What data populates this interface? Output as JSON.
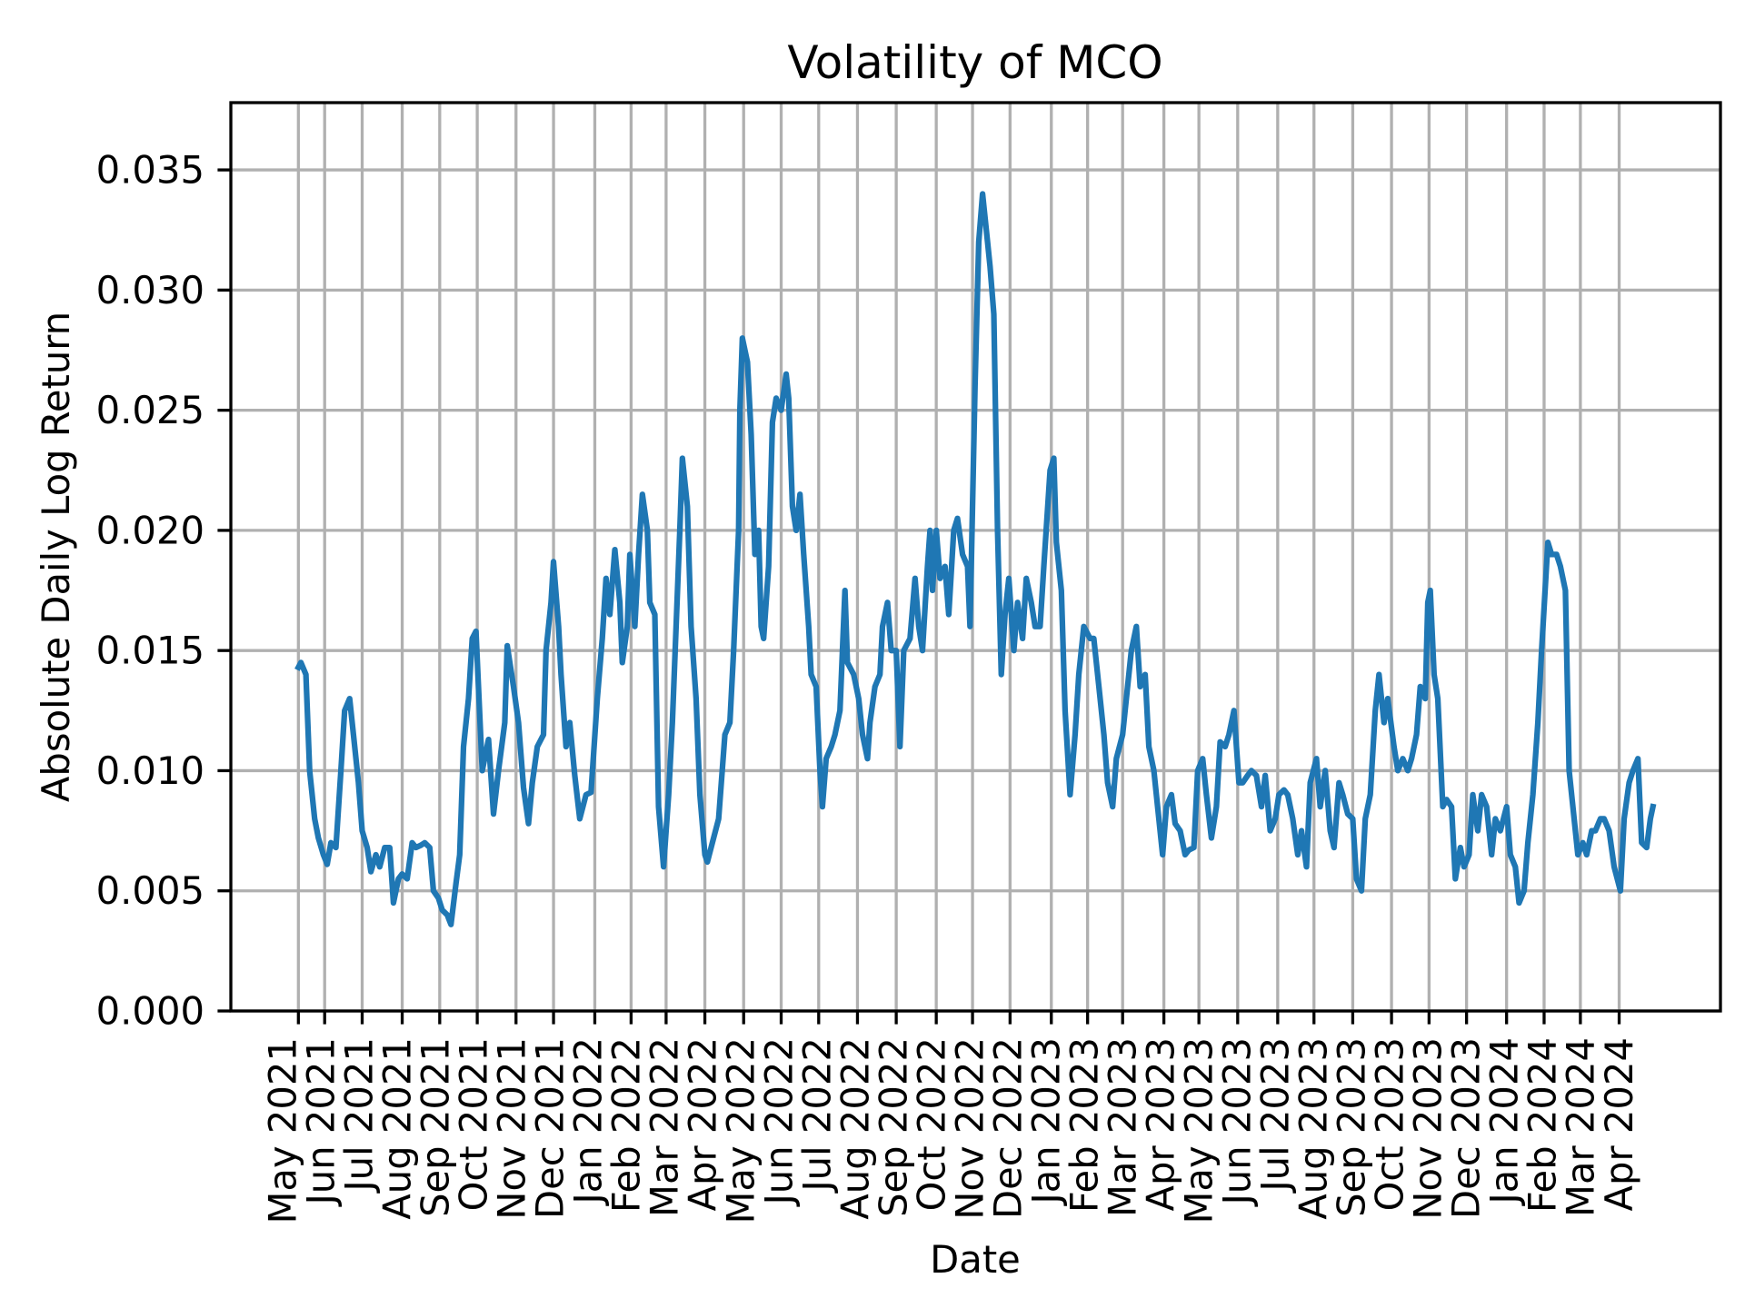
{
  "chart_data": {
    "type": "line",
    "title": "Volatility of MCO",
    "xlabel": "Date",
    "ylabel": "Absolute Daily Log Return",
    "xlim": [
      "2021-03-18",
      "2024-06-21"
    ],
    "ylim": [
      0,
      0.0378
    ],
    "grid": true,
    "line_color": "#1f77b4",
    "yticks": [
      0.0,
      0.005,
      0.01,
      0.015,
      0.02,
      0.025,
      0.03,
      0.035
    ],
    "ytick_labels": [
      "0.000",
      "0.005",
      "0.010",
      "0.015",
      "0.020",
      "0.025",
      "0.030",
      "0.035"
    ],
    "xticks": [
      "2021-05-11",
      "2021-06-01",
      "2021-07-01",
      "2021-08-02",
      "2021-09-01",
      "2021-10-01",
      "2021-11-01",
      "2021-12-01",
      "2022-01-03",
      "2022-02-01",
      "2022-03-01",
      "2022-04-01",
      "2022-05-02",
      "2022-06-01",
      "2022-07-01",
      "2022-08-01",
      "2022-09-01",
      "2022-10-03",
      "2022-11-01",
      "2022-12-01",
      "2023-01-03",
      "2023-02-01",
      "2023-03-01",
      "2023-04-03",
      "2023-05-01",
      "2023-06-01",
      "2023-07-03",
      "2023-08-01",
      "2023-09-01",
      "2023-10-02",
      "2023-11-01",
      "2023-12-01",
      "2024-01-02",
      "2024-02-01",
      "2024-03-01",
      "2024-04-01"
    ],
    "xtick_labels": [
      "May 2021",
      "Jun 2021",
      "Jul 2021",
      "Aug 2021",
      "Sep 2021",
      "Oct 2021",
      "Nov 2021",
      "Dec 2021",
      "Jan 2022",
      "Feb 2022",
      "Mar 2022",
      "Apr 2022",
      "May 2022",
      "Jun 2022",
      "Jul 2022",
      "Aug 2022",
      "Sep 2022",
      "Oct 2022",
      "Nov 2022",
      "Dec 2022",
      "Jan 2023",
      "Feb 2023",
      "Mar 2023",
      "Apr 2023",
      "May 2023",
      "Jun 2023",
      "Jul 2023",
      "Aug 2023",
      "Sep 2023",
      "Oct 2023",
      "Nov 2023",
      "Dec 2023",
      "Jan 2024",
      "Feb 2024",
      "Mar 2024",
      "Apr 2024"
    ],
    "x": [
      "2021-05-11",
      "2021-05-13",
      "2021-05-17",
      "2021-05-20",
      "2021-05-24",
      "2021-05-27",
      "2021-05-31",
      "2021-06-03",
      "2021-06-06",
      "2021-06-10",
      "2021-06-14",
      "2021-06-17",
      "2021-06-21",
      "2021-06-24",
      "2021-06-28",
      "2021-07-01",
      "2021-07-05",
      "2021-07-08",
      "2021-07-12",
      "2021-07-15",
      "2021-07-19",
      "2021-07-23",
      "2021-07-26",
      "2021-07-30",
      "2021-08-02",
      "2021-08-06",
      "2021-08-10",
      "2021-08-13",
      "2021-08-17",
      "2021-08-20",
      "2021-08-24",
      "2021-08-27",
      "2021-08-31",
      "2021-09-03",
      "2021-09-07",
      "2021-09-10",
      "2021-09-14",
      "2021-09-17",
      "2021-09-20",
      "2021-09-24",
      "2021-09-27",
      "2021-09-30",
      "2021-10-05",
      "2021-10-10",
      "2021-10-14",
      "2021-10-18",
      "2021-10-23",
      "2021-10-25",
      "2021-10-30",
      "2021-11-03",
      "2021-11-07",
      "2021-11-11",
      "2021-11-14",
      "2021-11-18",
      "2021-11-23",
      "2021-11-25",
      "2021-11-29",
      "2021-12-01",
      "2021-12-05",
      "2021-12-07",
      "2021-12-11",
      "2021-12-14",
      "2021-12-18",
      "2021-12-22",
      "2021-12-27",
      "2021-12-31",
      "2022-01-05",
      "2022-01-09",
      "2022-01-12",
      "2022-01-15",
      "2022-01-19",
      "2022-01-23",
      "2022-01-25",
      "2022-01-29",
      "2022-01-31",
      "2022-02-04",
      "2022-02-07",
      "2022-02-10",
      "2022-02-14",
      "2022-02-16",
      "2022-02-20",
      "2022-02-23",
      "2022-02-27",
      "2022-03-03",
      "2022-03-06",
      "2022-03-09",
      "2022-03-12",
      "2022-03-14",
      "2022-03-18",
      "2022-03-21",
      "2022-03-25",
      "2022-03-28",
      "2022-04-01",
      "2022-04-03",
      "2022-04-07",
      "2022-04-12",
      "2022-04-17",
      "2022-04-21",
      "2022-04-24",
      "2022-04-28",
      "2022-04-29",
      "2022-05-01",
      "2022-05-05",
      "2022-05-08",
      "2022-05-11",
      "2022-05-14",
      "2022-05-16",
      "2022-05-18",
      "2022-05-22",
      "2022-05-25",
      "2022-05-28",
      "2022-06-01",
      "2022-06-05",
      "2022-06-07",
      "2022-06-10",
      "2022-06-13",
      "2022-06-16",
      "2022-06-19",
      "2022-06-23",
      "2022-06-25",
      "2022-06-29",
      "2022-07-02",
      "2022-07-04",
      "2022-07-07",
      "2022-07-11",
      "2022-07-14",
      "2022-07-18",
      "2022-07-22",
      "2022-07-24",
      "2022-07-29",
      "2022-08-02",
      "2022-08-05",
      "2022-08-09",
      "2022-08-11",
      "2022-08-15",
      "2022-08-19",
      "2022-08-21",
      "2022-08-25",
      "2022-08-28",
      "2022-09-01",
      "2022-09-04",
      "2022-09-07",
      "2022-09-12",
      "2022-09-16",
      "2022-09-19",
      "2022-09-22",
      "2022-09-26",
      "2022-09-28",
      "2022-09-30",
      "2022-10-03",
      "2022-10-06",
      "2022-10-10",
      "2022-10-13",
      "2022-10-17",
      "2022-10-20",
      "2022-10-24",
      "2022-10-28",
      "2022-10-30",
      "2022-11-03",
      "2022-11-06",
      "2022-11-09",
      "2022-11-13",
      "2022-11-15",
      "2022-11-18",
      "2022-11-21",
      "2022-11-24",
      "2022-11-27",
      "2022-11-30",
      "2022-12-04",
      "2022-12-07",
      "2022-12-11",
      "2022-12-14",
      "2022-12-18",
      "2022-12-21",
      "2022-12-25",
      "2022-12-28",
      "2023-01-02",
      "2023-01-05",
      "2023-01-07",
      "2023-01-11",
      "2023-01-14",
      "2023-01-18",
      "2023-01-22",
      "2023-01-25",
      "2023-01-29",
      "2023-02-03",
      "2023-02-06",
      "2023-02-10",
      "2023-02-14",
      "2023-02-17",
      "2023-02-21",
      "2023-02-24",
      "2023-03-01",
      "2023-03-04",
      "2023-03-08",
      "2023-03-12",
      "2023-03-15",
      "2023-03-19",
      "2023-03-22",
      "2023-03-26",
      "2023-03-29",
      "2023-04-02",
      "2023-04-05",
      "2023-04-09",
      "2023-04-12",
      "2023-04-16",
      "2023-04-20",
      "2023-04-23",
      "2023-04-27",
      "2023-04-30",
      "2023-05-04",
      "2023-05-07",
      "2023-05-11",
      "2023-05-15",
      "2023-05-18",
      "2023-05-22",
      "2023-05-25",
      "2023-05-29",
      "2023-06-02",
      "2023-06-05",
      "2023-06-09",
      "2023-06-12",
      "2023-06-16",
      "2023-06-20",
      "2023-06-23",
      "2023-06-27",
      "2023-07-01",
      "2023-07-04",
      "2023-07-08",
      "2023-07-11",
      "2023-07-15",
      "2023-07-19",
      "2023-07-22",
      "2023-07-26",
      "2023-07-29",
      "2023-08-03",
      "2023-08-06",
      "2023-08-10",
      "2023-08-14",
      "2023-08-17",
      "2023-08-21",
      "2023-08-24",
      "2023-08-28",
      "2023-09-01",
      "2023-09-04",
      "2023-09-08",
      "2023-09-11",
      "2023-09-15",
      "2023-09-19",
      "2023-09-22",
      "2023-09-26",
      "2023-09-29",
      "2023-10-04",
      "2023-10-07",
      "2023-10-11",
      "2023-10-15",
      "2023-10-18",
      "2023-10-22",
      "2023-10-25",
      "2023-10-29",
      "2023-10-31",
      "2023-11-02",
      "2023-11-05",
      "2023-11-08",
      "2023-11-12",
      "2023-11-15",
      "2023-11-19",
      "2023-11-22",
      "2023-11-26",
      "2023-11-29",
      "2023-12-03",
      "2023-12-06",
      "2023-12-10",
      "2023-12-13",
      "2023-12-17",
      "2023-12-21",
      "2023-12-24",
      "2023-12-28",
      "2024-01-02",
      "2024-01-05",
      "2024-01-09",
      "2024-01-12",
      "2024-01-16",
      "2024-01-19",
      "2024-01-23",
      "2024-01-27",
      "2024-01-30",
      "2024-02-04",
      "2024-02-07",
      "2024-02-11",
      "2024-02-14",
      "2024-02-18",
      "2024-02-21",
      "2024-02-25",
      "2024-02-28",
      "2024-03-03",
      "2024-03-06",
      "2024-03-10",
      "2024-03-13",
      "2024-03-17",
      "2024-03-20",
      "2024-03-24",
      "2024-03-28",
      "2024-04-02",
      "2024-04-05",
      "2024-04-09",
      "2024-04-12",
      "2024-04-16",
      "2024-04-19",
      "2024-04-23",
      "2024-04-26",
      "2024-04-28"
    ],
    "y": [
      0.0143,
      0.0145,
      0.014,
      0.01,
      0.008,
      0.0072,
      0.0065,
      0.0061,
      0.007,
      0.0068,
      0.01,
      0.0125,
      0.013,
      0.0115,
      0.0095,
      0.0075,
      0.0068,
      0.0058,
      0.0065,
      0.006,
      0.0068,
      0.0068,
      0.0045,
      0.0055,
      0.0057,
      0.0055,
      0.007,
      0.0068,
      0.0069,
      0.007,
      0.0068,
      0.005,
      0.0047,
      0.0042,
      0.004,
      0.0036,
      0.0053,
      0.0065,
      0.011,
      0.013,
      0.0155,
      0.0158,
      0.01,
      0.0113,
      0.0082,
      0.01,
      0.012,
      0.0152,
      0.0135,
      0.012,
      0.0093,
      0.0078,
      0.0095,
      0.011,
      0.0115,
      0.015,
      0.017,
      0.0187,
      0.016,
      0.014,
      0.011,
      0.012,
      0.0098,
      0.008,
      0.009,
      0.0091,
      0.013,
      0.0155,
      0.018,
      0.0165,
      0.0192,
      0.017,
      0.0145,
      0.016,
      0.019,
      0.016,
      0.019,
      0.0215,
      0.02,
      0.017,
      0.0165,
      0.0085,
      0.006,
      0.009,
      0.012,
      0.016,
      0.02,
      0.023,
      0.021,
      0.016,
      0.013,
      0.009,
      0.0065,
      0.0062,
      0.007,
      0.008,
      0.0115,
      0.012,
      0.015,
      0.02,
      0.025,
      0.028,
      0.027,
      0.024,
      0.019,
      0.02,
      0.016,
      0.0155,
      0.0185,
      0.0245,
      0.0255,
      0.025,
      0.0265,
      0.0255,
      0.021,
      0.02,
      0.0215,
      0.019,
      0.016,
      0.014,
      0.0135,
      0.01,
      0.0085,
      0.0105,
      0.011,
      0.0115,
      0.0125,
      0.0175,
      0.0145,
      0.014,
      0.013,
      0.0115,
      0.0105,
      0.012,
      0.0135,
      0.014,
      0.016,
      0.017,
      0.015,
      0.015,
      0.011,
      0.015,
      0.0155,
      0.018,
      0.016,
      0.015,
      0.0185,
      0.02,
      0.0175,
      0.02,
      0.018,
      0.0185,
      0.0165,
      0.02,
      0.0205,
      0.019,
      0.0185,
      0.016,
      0.026,
      0.032,
      0.034,
      0.032,
      0.031,
      0.029,
      0.02,
      0.014,
      0.0165,
      0.018,
      0.015,
      0.017,
      0.0155,
      0.018,
      0.017,
      0.016,
      0.016,
      0.0185,
      0.0225,
      0.023,
      0.0195,
      0.0175,
      0.0125,
      0.009,
      0.0115,
      0.014,
      0.016,
      0.0155,
      0.0155,
      0.0135,
      0.0115,
      0.0095,
      0.0085,
      0.0105,
      0.0115,
      0.013,
      0.015,
      0.016,
      0.0135,
      0.014,
      0.011,
      0.01,
      0.0085,
      0.0065,
      0.0085,
      0.009,
      0.0078,
      0.0075,
      0.0065,
      0.0067,
      0.0068,
      0.01,
      0.0105,
      0.009,
      0.0072,
      0.0085,
      0.0112,
      0.011,
      0.0115,
      0.0125,
      0.0095,
      0.0095,
      0.0098,
      0.01,
      0.0098,
      0.0085,
      0.0098,
      0.0075,
      0.008,
      0.009,
      0.0092,
      0.009,
      0.008,
      0.0065,
      0.0075,
      0.006,
      0.0095,
      0.0105,
      0.0085,
      0.01,
      0.0075,
      0.0068,
      0.0095,
      0.009,
      0.0082,
      0.008,
      0.0055,
      0.005,
      0.008,
      0.009,
      0.0125,
      0.014,
      0.012,
      0.013,
      0.011,
      0.01,
      0.0105,
      0.01,
      0.0105,
      0.0115,
      0.0135,
      0.013,
      0.017,
      0.0175,
      0.014,
      0.013,
      0.0085,
      0.0088,
      0.0085,
      0.0055,
      0.0068,
      0.006,
      0.0065,
      0.009,
      0.0075,
      0.009,
      0.0085,
      0.0065,
      0.008,
      0.0075,
      0.0085,
      0.0065,
      0.006,
      0.0045,
      0.005,
      0.007,
      0.009,
      0.012,
      0.015,
      0.0195,
      0.019,
      0.019,
      0.0185,
      0.0175,
      0.01,
      0.008,
      0.0065,
      0.007,
      0.0065,
      0.0075,
      0.0075,
      0.008,
      0.008,
      0.0075,
      0.006,
      0.005,
      0.008,
      0.0095,
      0.01,
      0.0105,
      0.007,
      0.0068,
      0.008,
      0.0085
    ]
  }
}
